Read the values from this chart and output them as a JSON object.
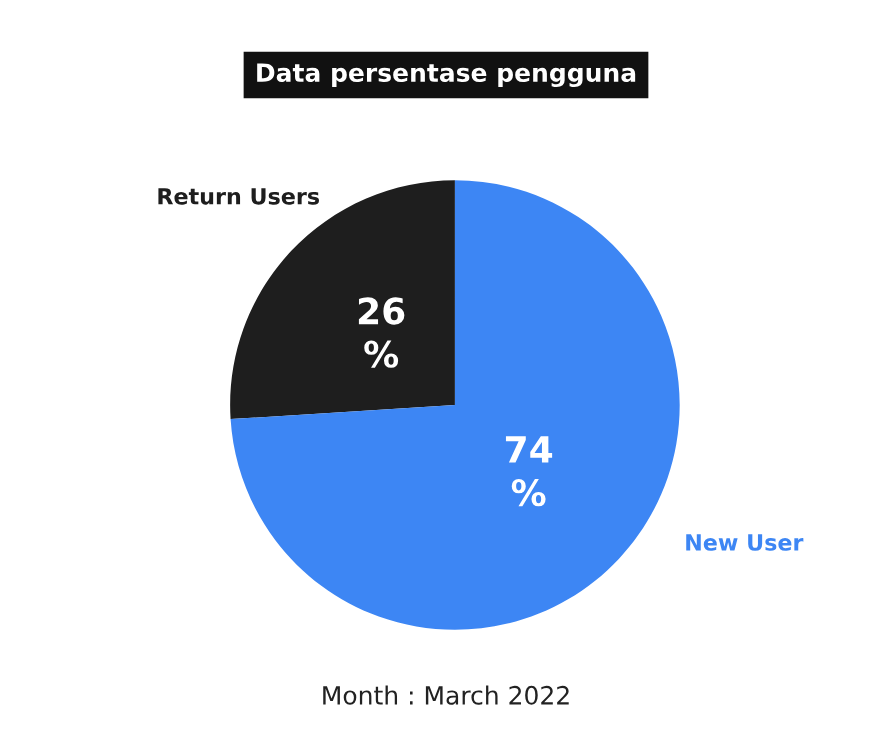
{
  "chart_data": {
    "type": "pie",
    "title": "Data persentase pengguna",
    "categories": [
      "Return Users",
      "New User"
    ],
    "values": [
      26,
      74
    ],
    "colors": [
      "#1e1e1e",
      "#3d86f4"
    ],
    "value_labels": [
      "26\n%",
      "74\n%"
    ],
    "annotations": [
      "Month : March 2022"
    ]
  }
}
